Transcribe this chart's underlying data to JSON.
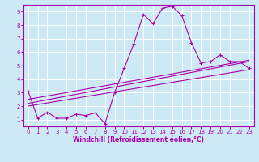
{
  "xlabel": "Windchill (Refroidissement éolien,°C)",
  "background_color": "#cce9f5",
  "grid_color": "#ffffff",
  "line_color": "#aa00aa",
  "xlim": [
    -0.5,
    23.5
  ],
  "ylim": [
    0.5,
    9.5
  ],
  "xticks": [
    0,
    1,
    2,
    3,
    4,
    5,
    6,
    7,
    8,
    9,
    10,
    11,
    12,
    13,
    14,
    15,
    16,
    17,
    18,
    19,
    20,
    21,
    22,
    23
  ],
  "yticks": [
    1,
    2,
    3,
    4,
    5,
    6,
    7,
    8,
    9
  ],
  "main_x": [
    0,
    1,
    2,
    3,
    4,
    5,
    6,
    7,
    8,
    9,
    10,
    11,
    12,
    13,
    14,
    15,
    16,
    17,
    18,
    19,
    20,
    21,
    22,
    23
  ],
  "main_y": [
    3.1,
    1.1,
    1.55,
    1.1,
    1.1,
    1.4,
    1.3,
    1.5,
    0.7,
    3.0,
    4.8,
    6.6,
    8.8,
    8.1,
    9.25,
    9.4,
    8.7,
    6.7,
    5.2,
    5.3,
    5.8,
    5.3,
    5.3,
    4.8
  ],
  "line2_x": [
    0,
    23
  ],
  "line2_y": [
    2.2,
    5.3
  ],
  "line3_x": [
    0,
    23
  ],
  "line3_y": [
    2.5,
    5.4
  ],
  "line4_x": [
    0,
    23
  ],
  "line4_y": [
    2.0,
    4.7
  ]
}
